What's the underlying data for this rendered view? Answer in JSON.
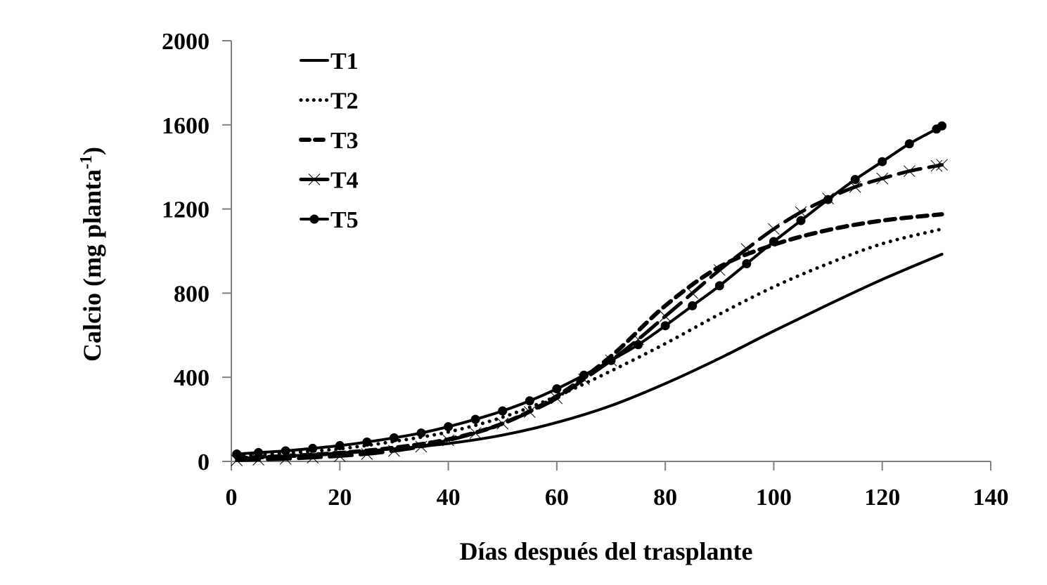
{
  "chart_data": {
    "type": "line",
    "title": "",
    "xlabel": "Días después del trasplante",
    "ylabel": "Calcio (mg planta",
    "ylabel_superscript": "-1",
    "ylabel_close": ")",
    "xlim": [
      0,
      140
    ],
    "ylim": [
      0,
      2000
    ],
    "xticks": [
      0,
      20,
      40,
      60,
      80,
      100,
      120,
      140
    ],
    "yticks": [
      0,
      400,
      800,
      1200,
      1600,
      2000
    ],
    "grid": false,
    "legend_position": "upper-left",
    "axis_color": "#808080",
    "line_color": "#000000",
    "series": [
      {
        "name": "T1",
        "style": "solid",
        "marker": "none",
        "x": [
          1,
          10,
          20,
          30,
          40,
          50,
          60,
          70,
          80,
          90,
          100,
          110,
          120,
          131
        ],
        "values": [
          15,
          25,
          40,
          60,
          85,
          125,
          185,
          265,
          370,
          490,
          620,
          745,
          865,
          985
        ]
      },
      {
        "name": "T2",
        "style": "dotted",
        "marker": "none",
        "x": [
          1,
          10,
          20,
          30,
          40,
          50,
          60,
          70,
          80,
          90,
          100,
          110,
          120,
          131
        ],
        "values": [
          25,
          40,
          60,
          95,
          140,
          210,
          310,
          430,
          560,
          700,
          830,
          940,
          1035,
          1105
        ]
      },
      {
        "name": "T3",
        "style": "dashed",
        "marker": "none",
        "x": [
          1,
          10,
          20,
          30,
          40,
          50,
          60,
          70,
          80,
          90,
          100,
          110,
          120,
          131
        ],
        "values": [
          15,
          25,
          40,
          65,
          105,
          180,
          310,
          500,
          740,
          925,
          1030,
          1100,
          1145,
          1175
        ]
      },
      {
        "name": "T4",
        "style": "long-dash",
        "marker": "x",
        "x": [
          1,
          5,
          10,
          15,
          20,
          25,
          30,
          35,
          40,
          45,
          50,
          55,
          60,
          65,
          70,
          75,
          80,
          85,
          90,
          95,
          100,
          105,
          110,
          115,
          120,
          125,
          130,
          131
        ],
        "values": [
          5,
          8,
          12,
          18,
          25,
          35,
          50,
          70,
          100,
          135,
          180,
          235,
          300,
          390,
          480,
          580,
          690,
          800,
          910,
          1010,
          1105,
          1185,
          1250,
          1305,
          1345,
          1380,
          1405,
          1410
        ]
      },
      {
        "name": "T5",
        "style": "solid",
        "marker": "circle",
        "x": [
          1,
          5,
          10,
          15,
          20,
          25,
          30,
          35,
          40,
          45,
          50,
          55,
          60,
          65,
          70,
          75,
          80,
          85,
          90,
          95,
          100,
          105,
          110,
          115,
          120,
          125,
          130,
          131
        ],
        "values": [
          35,
          42,
          50,
          62,
          75,
          92,
          112,
          135,
          165,
          200,
          240,
          288,
          345,
          410,
          480,
          555,
          645,
          740,
          835,
          940,
          1045,
          1145,
          1245,
          1340,
          1425,
          1510,
          1580,
          1595
        ]
      }
    ]
  }
}
